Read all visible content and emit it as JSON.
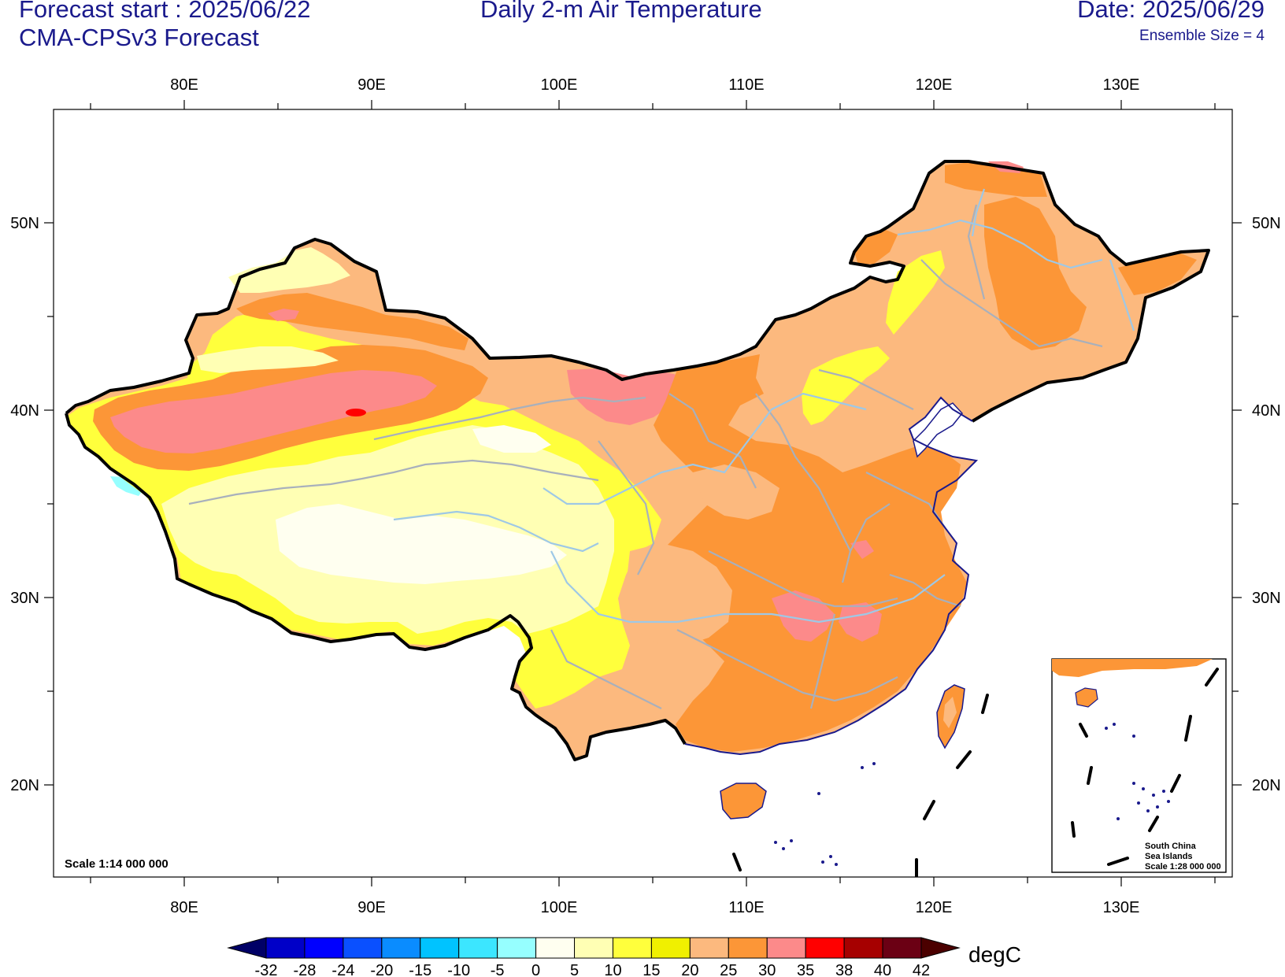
{
  "header": {
    "forecast_start": "Forecast start : 2025/06/22",
    "model": "CMA-CPSv3 Forecast",
    "title": "Daily 2-m Air Temperature",
    "date": "Date: 2025/06/29",
    "ensemble": "Ensemble Size = 4"
  },
  "axes": {
    "lon_labels": [
      "80E",
      "90E",
      "100E",
      "110E",
      "120E",
      "130E"
    ],
    "lat_labels": [
      "50N",
      "40N",
      "30N",
      "20N"
    ]
  },
  "map": {
    "scale": "Scale 1:14 000 000",
    "inset_lines": [
      "South China",
      "Sea Islands",
      "Scale 1:28 000 000"
    ]
  },
  "colorbar": {
    "unit": "degC",
    "ticks": [
      "-32",
      "-28",
      "-24",
      "-20",
      "-15",
      "-10",
      "-5",
      "0",
      "5",
      "10",
      "15",
      "20",
      "25",
      "30",
      "35",
      "38",
      "40",
      "42"
    ],
    "colors": [
      "#000066",
      "#0000c8",
      "#0000ff",
      "#0a50ff",
      "#0a8cff",
      "#00c3ff",
      "#3ce6ff",
      "#96ffff",
      "#fffff0",
      "#ffffb4",
      "#ffff3c",
      "#f0f000",
      "#fcb97e",
      "#fc9637",
      "#fc8a8a",
      "#ff0000",
      "#a60000",
      "#6b0014",
      "#4b0000"
    ]
  },
  "colors": {
    "text": "#1a1a8c",
    "hot": "#fc8a8a",
    "warm": "#fc9637",
    "mild": "#fcb97e",
    "yellow": "#f0f000",
    "pale": "#ffffb4",
    "coast": "#1a1a8c",
    "rivers": "#9ec8e6"
  }
}
